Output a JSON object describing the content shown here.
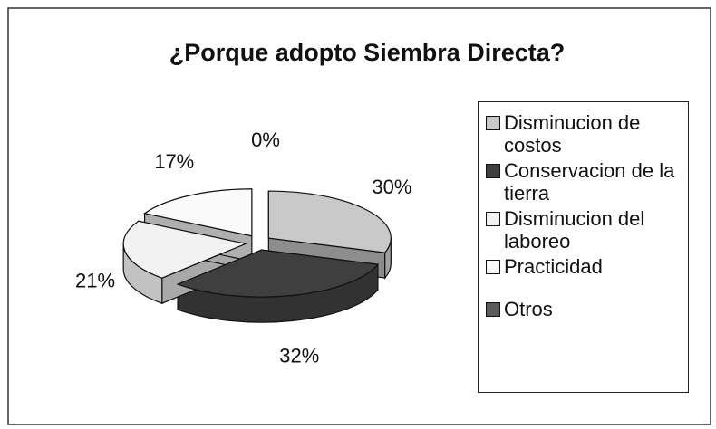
{
  "chart_data": {
    "type": "pie3d",
    "title": "¿Porque adopto Siembra Directa?",
    "categories": [
      "Disminucion de costos",
      "Conservacion de la tierra",
      "Disminucion del laboreo",
      "Practicidad",
      "Otros"
    ],
    "values": [
      30,
      32,
      21,
      17,
      0
    ],
    "value_labels": [
      "30%",
      "32%",
      "21%",
      "17%",
      "0%"
    ],
    "colors": [
      "#c9c9c9",
      "#3f3f3f",
      "#f2f2f2",
      "#fafafa",
      "#5a5a5a"
    ],
    "legend": "right"
  }
}
